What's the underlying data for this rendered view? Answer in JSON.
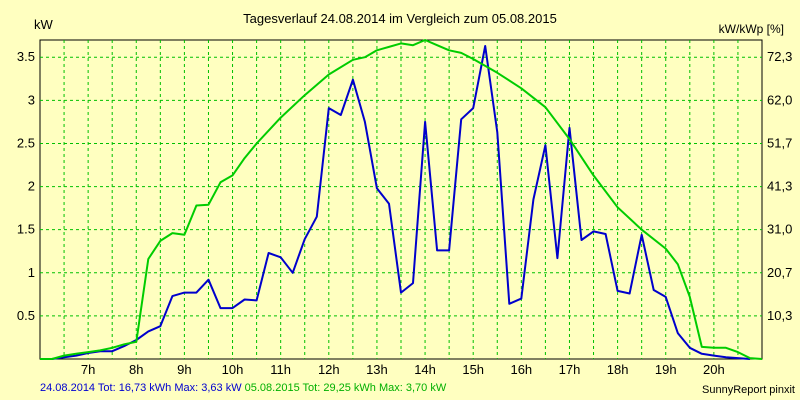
{
  "chart_data": {
    "type": "line",
    "title": "Tagesverlauf 24.08.2014 im Vergleich zum 05.08.2015",
    "ylabel": "kW",
    "ylabel_right": "kW/kWp [%]",
    "x_ticks": [
      "7h",
      "8h",
      "9h",
      "10h",
      "11h",
      "12h",
      "13h",
      "14h",
      "15h",
      "16h",
      "17h",
      "18h",
      "19h",
      "20h"
    ],
    "x_tick_values": [
      7,
      8,
      9,
      10,
      11,
      12,
      13,
      14,
      15,
      16,
      17,
      18,
      19,
      20
    ],
    "xlim": [
      6.0,
      21.0
    ],
    "ylim": [
      0,
      3.7
    ],
    "y_ticks": [
      0.5,
      1,
      1.5,
      2,
      2.5,
      3,
      3.5
    ],
    "y_tick_labels": [
      "0.5",
      "1",
      "1.5",
      "2",
      "2.5",
      "3",
      "3.5"
    ],
    "y_right_ticks": [
      "10,3",
      "20,7",
      "31,0",
      "41,3",
      "51,7",
      "62,0",
      "72,3"
    ],
    "grid": true,
    "legend_placement": "bottom",
    "series": [
      {
        "name": "24.08.2014",
        "color": "#0000cc",
        "x": [
          6.25,
          6.5,
          6.75,
          7.0,
          7.25,
          7.5,
          7.75,
          8.0,
          8.25,
          8.5,
          8.75,
          9.0,
          9.25,
          9.5,
          9.75,
          10.0,
          10.25,
          10.5,
          10.75,
          11.0,
          11.25,
          11.5,
          11.75,
          12.0,
          12.25,
          12.5,
          12.75,
          13.0,
          13.25,
          13.5,
          13.75,
          14.0,
          14.25,
          14.5,
          14.75,
          15.0,
          15.25,
          15.5,
          15.75,
          16.0,
          16.25,
          16.5,
          16.75,
          17.0,
          17.25,
          17.5,
          17.75,
          18.0,
          18.25,
          18.5,
          18.75,
          19.0,
          19.25,
          19.5,
          19.75,
          20.0,
          20.25,
          20.5,
          20.75
        ],
        "values": [
          0.0,
          0.02,
          0.04,
          0.07,
          0.09,
          0.09,
          0.15,
          0.22,
          0.32,
          0.38,
          0.73,
          0.77,
          0.77,
          0.92,
          0.59,
          0.59,
          0.69,
          0.68,
          1.23,
          1.18,
          1.0,
          1.39,
          1.65,
          2.91,
          2.83,
          3.24,
          2.75,
          1.98,
          1.8,
          0.77,
          0.88,
          2.75,
          1.26,
          1.26,
          2.78,
          2.91,
          3.63,
          2.63,
          0.64,
          0.7,
          1.85,
          2.48,
          1.17,
          2.68,
          1.38,
          1.48,
          1.45,
          0.79,
          0.76,
          1.44,
          0.8,
          0.72,
          0.3,
          0.13,
          0.06,
          0.04,
          0.02,
          0.01,
          0.0
        ]
      },
      {
        "name": "05.08.2015",
        "color": "#00cc00",
        "x": [
          6.0,
          6.25,
          6.5,
          6.75,
          7.0,
          7.25,
          7.5,
          7.75,
          8.0,
          8.25,
          8.5,
          8.75,
          9.0,
          9.25,
          9.5,
          9.75,
          10.0,
          10.25,
          10.5,
          11.0,
          11.5,
          12.0,
          12.5,
          12.75,
          13.0,
          13.25,
          13.5,
          13.75,
          14.0,
          14.25,
          14.5,
          14.75,
          15.0,
          15.5,
          16.0,
          16.5,
          17.0,
          17.5,
          18.0,
          18.5,
          19.0,
          19.25,
          19.5,
          19.75,
          20.0,
          20.25,
          20.5,
          20.75,
          21.0
        ],
        "values": [
          0.0,
          0.0,
          0.04,
          0.06,
          0.08,
          0.1,
          0.13,
          0.17,
          0.2,
          1.16,
          1.37,
          1.46,
          1.44,
          1.78,
          1.79,
          2.05,
          2.13,
          2.33,
          2.5,
          2.8,
          3.06,
          3.3,
          3.47,
          3.5,
          3.58,
          3.62,
          3.66,
          3.64,
          3.7,
          3.64,
          3.58,
          3.55,
          3.48,
          3.32,
          3.14,
          2.92,
          2.55,
          2.13,
          1.76,
          1.5,
          1.28,
          1.1,
          0.72,
          0.14,
          0.13,
          0.13,
          0.08,
          0.01,
          0.0
        ]
      }
    ]
  },
  "footer": {
    "series1_text": "24.08.2014 Tot: 16,73 kWh Max: 3,63 kW",
    "series2_text": "05.08.2015 Tot: 29,25 kWh Max: 3,70 kW",
    "credit": "SunnyReport pinxit"
  }
}
